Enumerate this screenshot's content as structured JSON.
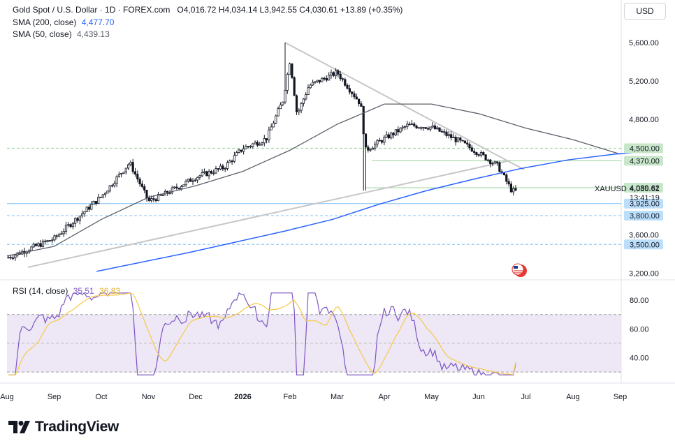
{
  "header": {
    "symbol": "Gold Spot / U.S. Dollar · 1D · FOREX.com",
    "open": "O4,016.72",
    "high": "H4,034.14",
    "low": "L3,942.55",
    "close": "C4,030.61",
    "change": "+13.89 (+0.35%)",
    "sma200_label": "SMA (200, close)",
    "sma200_value": "4,477.70",
    "sma50_label": "SMA (50, close)",
    "sma50_value": "4,439.13",
    "currency": "USD"
  },
  "rsi_pane": {
    "label": "RSI (14, close)",
    "rsi_value": "35.51",
    "ma_value": "36.83"
  },
  "price_axis": {
    "ticks": [
      "5,600.00",
      "5,200.00",
      "4,800.00",
      "3,600.00",
      "3,200.00"
    ],
    "badges": [
      {
        "text": "4,500.00",
        "value": 4500,
        "bg": "#c8e6c9",
        "fg": "#131722"
      },
      {
        "text": "4,370.00",
        "value": 4370,
        "bg": "#c8e6c9",
        "fg": "#131722"
      },
      {
        "text": "4,089.62",
        "value": 4089.62,
        "bg": "#c8e6c9",
        "fg": "#131722"
      },
      {
        "text": "3,925.00",
        "value": 3925,
        "bg": "#bbdefb",
        "fg": "#131722"
      },
      {
        "text": "3,800.00",
        "value": 3800,
        "bg": "#bbdefb",
        "fg": "#131722"
      },
      {
        "text": "3,500.00",
        "value": 3500,
        "bg": "#bbdefb",
        "fg": "#131722"
      }
    ],
    "symbol_tag": "XAUUSD",
    "last_price": "4,030.61",
    "countdown": "13:41:19"
  },
  "rsi_axis": {
    "ticks": [
      "80.00",
      "60.00",
      "40.00"
    ]
  },
  "time_axis": {
    "labels": [
      "Aug",
      "Sep",
      "Oct",
      "Nov",
      "Dec",
      "2026",
      "Feb",
      "Mar",
      "Apr",
      "May",
      "Jun",
      "Jul",
      "Aug",
      "Sep"
    ]
  },
  "colors": {
    "sma200": "#2962ff",
    "sma50": "#5d606b",
    "up": "#131722",
    "rsi_line": "#7e57c2",
    "rsi_ma": "#f7c948",
    "trend": "#c7c7c7",
    "green_level": "#a5d6a7",
    "blue_level": "#90caf9"
  },
  "branding": {
    "name": "TradingView"
  },
  "chart_data": {
    "type": "candlestick",
    "symbol": "XAUUSD",
    "x_labels": [
      "Aug",
      "Sep",
      "Oct",
      "Nov",
      "Dec",
      "2026",
      "Feb",
      "Mar",
      "Apr",
      "May",
      "Jun",
      "Jul",
      "Aug",
      "Sep"
    ],
    "ylim": [
      3200,
      5700
    ],
    "price_path": [
      [
        "Aug",
        3360
      ],
      [
        "Sep",
        3560
      ],
      [
        "Oct",
        4000
      ],
      [
        "Oct+",
        4350
      ],
      [
        "Nov",
        3950
      ],
      [
        "Nov+",
        4010
      ],
      [
        "Dec",
        4200
      ],
      [
        "Dec+",
        4300
      ],
      [
        "2026",
        4500
      ],
      [
        "Jan+",
        4600
      ],
      [
        "Feb-",
        5000
      ],
      [
        "Feb",
        5420
      ],
      [
        "Feb+",
        4850
      ],
      [
        "Feb++",
        5150
      ],
      [
        "Mar",
        5290
      ],
      [
        "Mar+",
        4960
      ],
      [
        "Mar++",
        4480
      ],
      [
        "Apr",
        4600
      ],
      [
        "Apr+",
        4740
      ],
      [
        "May",
        4720
      ],
      [
        "May+",
        4570
      ],
      [
        "Jun",
        4450
      ],
      [
        "Jun+",
        4320
      ],
      [
        "Jun++",
        4060
      ],
      [
        "Jul",
        4030.61
      ]
    ],
    "sma50": [
      [
        0,
        3380
      ],
      [
        1,
        3480
      ],
      [
        2,
        3760
      ],
      [
        3,
        3990
      ],
      [
        4,
        4110
      ],
      [
        5,
        4260
      ],
      [
        6,
        4480
      ],
      [
        7,
        4750
      ],
      [
        8,
        4960
      ],
      [
        9,
        4960
      ],
      [
        10,
        4860
      ],
      [
        11,
        4710
      ],
      [
        12,
        4590
      ],
      [
        13,
        4439
      ]
    ],
    "sma200": [
      [
        0,
        3220
      ],
      [
        2,
        3420
      ],
      [
        4,
        3640
      ],
      [
        5,
        3760
      ],
      [
        6,
        3920
      ],
      [
        7,
        4060
      ],
      [
        8,
        4180
      ],
      [
        9,
        4290
      ],
      [
        10,
        4380
      ],
      [
        11,
        4440
      ],
      [
        12,
        4478
      ]
    ],
    "horizontal_levels": [
      4500,
      4370,
      4089.62,
      3925,
      3800,
      3500
    ],
    "rsi": {
      "latest": 35.51,
      "ma": 36.83,
      "levels": [
        80,
        60,
        40
      ],
      "band": [
        30,
        70
      ]
    }
  }
}
